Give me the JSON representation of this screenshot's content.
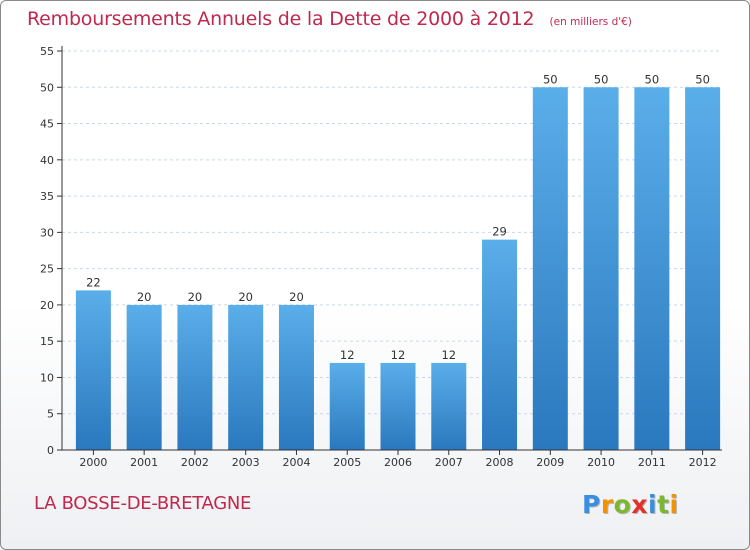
{
  "header": {
    "title": "Remboursements Annuels de la Dette de 2000 à 2012",
    "subtitle": "(en milliers d'€)"
  },
  "footer": {
    "commune": "LA BOSSE-DE-BRETAGNE",
    "logo_letters": [
      {
        "ch": "P",
        "color": "#3a8ee0"
      },
      {
        "ch": "r",
        "color": "#f39200"
      },
      {
        "ch": "o",
        "color": "#7cb82f"
      },
      {
        "ch": "x",
        "color": "#e0312b"
      },
      {
        "ch": "i",
        "color": "#3a8ee0"
      },
      {
        "ch": "t",
        "color": "#7cb82f"
      },
      {
        "ch": "i",
        "color": "#f39200"
      }
    ]
  },
  "colors": {
    "title": "#c0294e",
    "bar_top": "#5aaee9",
    "bar_bottom": "#2a78be",
    "axis": "#333333",
    "grid": "#c8d8ee"
  },
  "chart_data": {
    "type": "bar",
    "categories": [
      "2000",
      "2001",
      "2002",
      "2003",
      "2004",
      "2005",
      "2006",
      "2007",
      "2008",
      "2009",
      "2010",
      "2011",
      "2012"
    ],
    "values": [
      22,
      20,
      20,
      20,
      20,
      12,
      12,
      12,
      29,
      50,
      50,
      50,
      50
    ],
    "ylim": [
      0,
      55
    ],
    "yticks": [
      0,
      5,
      10,
      15,
      20,
      25,
      30,
      35,
      40,
      45,
      50,
      55
    ],
    "grid": true,
    "data_labels": true
  }
}
